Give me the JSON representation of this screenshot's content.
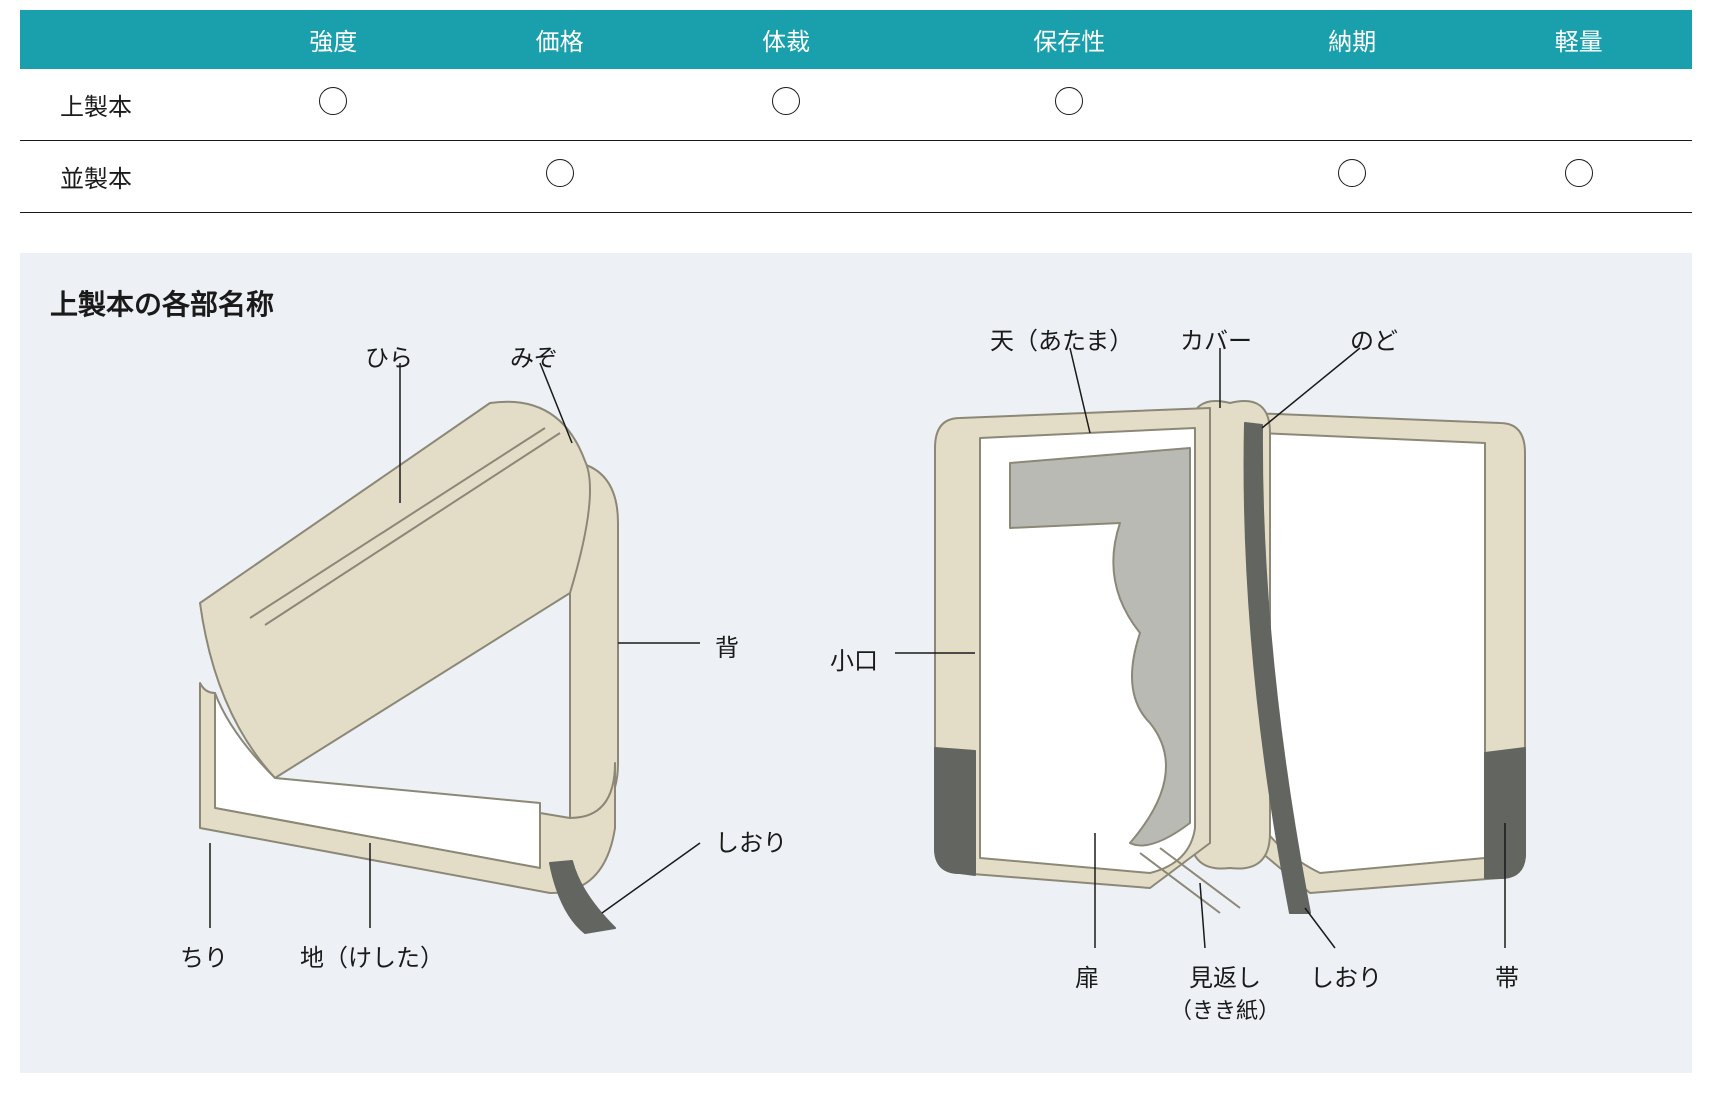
{
  "colors": {
    "header_bg": "#1aa0ac",
    "panel_bg": "#edf0f4",
    "book_cover": "#e3ddc8",
    "book_cover_stroke": "#8c8877",
    "page_white": "#ffffff",
    "page_grey": "#b9bab4",
    "obi_grey": "#626560",
    "line": "#1a1a1a"
  },
  "table": {
    "columns": [
      "",
      "強度",
      "価格",
      "体裁",
      "保存性",
      "納期",
      "軽量"
    ],
    "rows": [
      {
        "label": "上製本",
        "marks": [
          true,
          false,
          true,
          true,
          false,
          false
        ]
      },
      {
        "label": "並製本",
        "marks": [
          false,
          true,
          false,
          false,
          true,
          true
        ]
      }
    ]
  },
  "panel": {
    "title": "上製本の各部名称",
    "closed_labels": {
      "hira": "ひら",
      "mizo": "みぞ",
      "se": "背",
      "shiori": "しおり",
      "chiri": "ちり",
      "ji": "地（けした）"
    },
    "open_labels": {
      "ten": "天（あたま）",
      "cover": "カバー",
      "nodo": "のど",
      "koguchi": "小口",
      "tobira": "扉",
      "mikaeshi": "見返し",
      "mikaeshi_sub": "（きき紙）",
      "shiori": "しおり",
      "obi": "帯"
    }
  }
}
